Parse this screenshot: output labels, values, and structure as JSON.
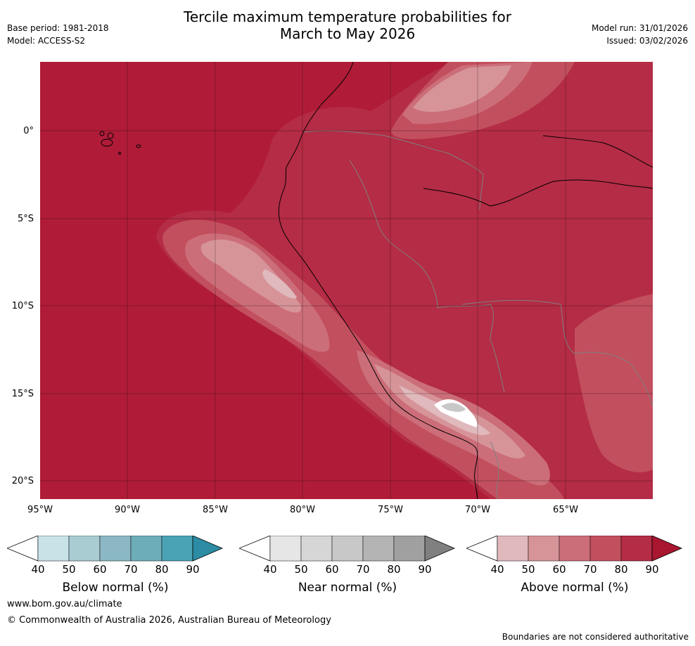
{
  "header": {
    "title_line1": "Tercile maximum temperature probabilities for",
    "title_line2": "March to May 2026",
    "base_period": "Base period: 1981-2018",
    "model": "Model: ACCESS-S2",
    "model_run": "Model run: 31/01/2026",
    "issued": "Issued: 03/02/2026"
  },
  "map": {
    "lat_labels": [
      "0°",
      "5°S",
      "10°S",
      "15°S",
      "20°S"
    ],
    "lon_labels": [
      "95°W",
      "90°W",
      "85°W",
      "80°W",
      "75°W",
      "70°W",
      "65°W"
    ],
    "background_category": "Above normal 90%",
    "colors": {
      "above_90": "#b01c38",
      "above_80": "#b42c45",
      "above_70": "#c24f5e",
      "above_60": "#cc6e79",
      "above_50": "#d69499",
      "above_40": "#e0b9bd",
      "near_high": "#ffffff",
      "near_70": "#c8c8c8",
      "coast": "#000000",
      "border": "#808080"
    }
  },
  "colorbars": [
    {
      "title": "Below normal (%)",
      "ticks": [
        "40",
        "50",
        "60",
        "70",
        "80",
        "90"
      ],
      "colors": [
        "#ffffff",
        "#c8e2e8",
        "#a9cbd2",
        "#8bb8c4",
        "#6dadba",
        "#4aa3b4",
        "#2b8ca3"
      ]
    },
    {
      "title": "Near normal (%)",
      "ticks": [
        "40",
        "50",
        "60",
        "70",
        "80",
        "90"
      ],
      "colors": [
        "#ffffff",
        "#e6e6e6",
        "#d6d6d6",
        "#c8c8c8",
        "#b4b4b4",
        "#a0a0a0",
        "#808080"
      ]
    },
    {
      "title": "Above normal (%)",
      "ticks": [
        "40",
        "50",
        "60",
        "70",
        "80",
        "90"
      ],
      "colors": [
        "#ffffff",
        "#e0b9bd",
        "#d69499",
        "#cc6e79",
        "#c24f5e",
        "#b42c45",
        "#a8162f"
      ]
    }
  ],
  "footer": {
    "website": "www.bom.gov.au/climate",
    "copyright": "© Commonwealth of Australia 2026, Australian Bureau of Meteorology",
    "disclaimer": "Boundaries are not considered authoritative"
  }
}
